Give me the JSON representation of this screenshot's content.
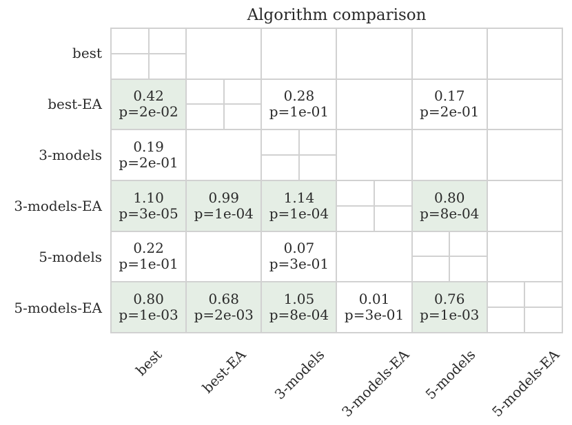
{
  "colors": {
    "background": "#ffffff",
    "grid_line": "#d1d1d1",
    "highlight": "#e5eee5",
    "cell_bg": "#ffffff",
    "text": "#2a2a2a"
  },
  "chart_data": {
    "type": "heatmap",
    "title": "Algorithm comparison",
    "legend_position": "none",
    "grid": true,
    "row_labels": [
      "best",
      "best-EA",
      "3-models",
      "3-models-EA",
      "5-models",
      "5-models-EA"
    ],
    "col_labels": [
      "best",
      "best-EA",
      "3-models",
      "3-models-EA",
      "5-models",
      "5-models-EA"
    ],
    "highlight_color": "#e5eee5",
    "cells": [
      [
        {
          "diagonal": true
        },
        null,
        null,
        null,
        null,
        null
      ],
      [
        {
          "value": "0.42",
          "p": "p=2e-02",
          "highlighted": true
        },
        {
          "diagonal": true
        },
        {
          "value": "0.28",
          "p": "p=1e-01",
          "highlighted": false
        },
        null,
        {
          "value": "0.17",
          "p": "p=2e-01",
          "highlighted": false
        },
        null
      ],
      [
        {
          "value": "0.19",
          "p": "p=2e-01",
          "highlighted": false
        },
        null,
        {
          "diagonal": true
        },
        null,
        null,
        null
      ],
      [
        {
          "value": "1.10",
          "p": "p=3e-05",
          "highlighted": true
        },
        {
          "value": "0.99",
          "p": "p=1e-04",
          "highlighted": true
        },
        {
          "value": "1.14",
          "p": "p=1e-04",
          "highlighted": true
        },
        {
          "diagonal": true
        },
        {
          "value": "0.80",
          "p": "p=8e-04",
          "highlighted": true
        },
        null
      ],
      [
        {
          "value": "0.22",
          "p": "p=1e-01",
          "highlighted": false
        },
        null,
        {
          "value": "0.07",
          "p": "p=3e-01",
          "highlighted": false
        },
        null,
        {
          "diagonal": true
        },
        null
      ],
      [
        {
          "value": "0.80",
          "p": "p=1e-03",
          "highlighted": true
        },
        {
          "value": "0.68",
          "p": "p=2e-03",
          "highlighted": true
        },
        {
          "value": "1.05",
          "p": "p=8e-04",
          "highlighted": true
        },
        {
          "value": "0.01",
          "p": "p=3e-01",
          "highlighted": false
        },
        {
          "value": "0.76",
          "p": "p=1e-03",
          "highlighted": true
        },
        {
          "diagonal": true
        }
      ]
    ]
  }
}
